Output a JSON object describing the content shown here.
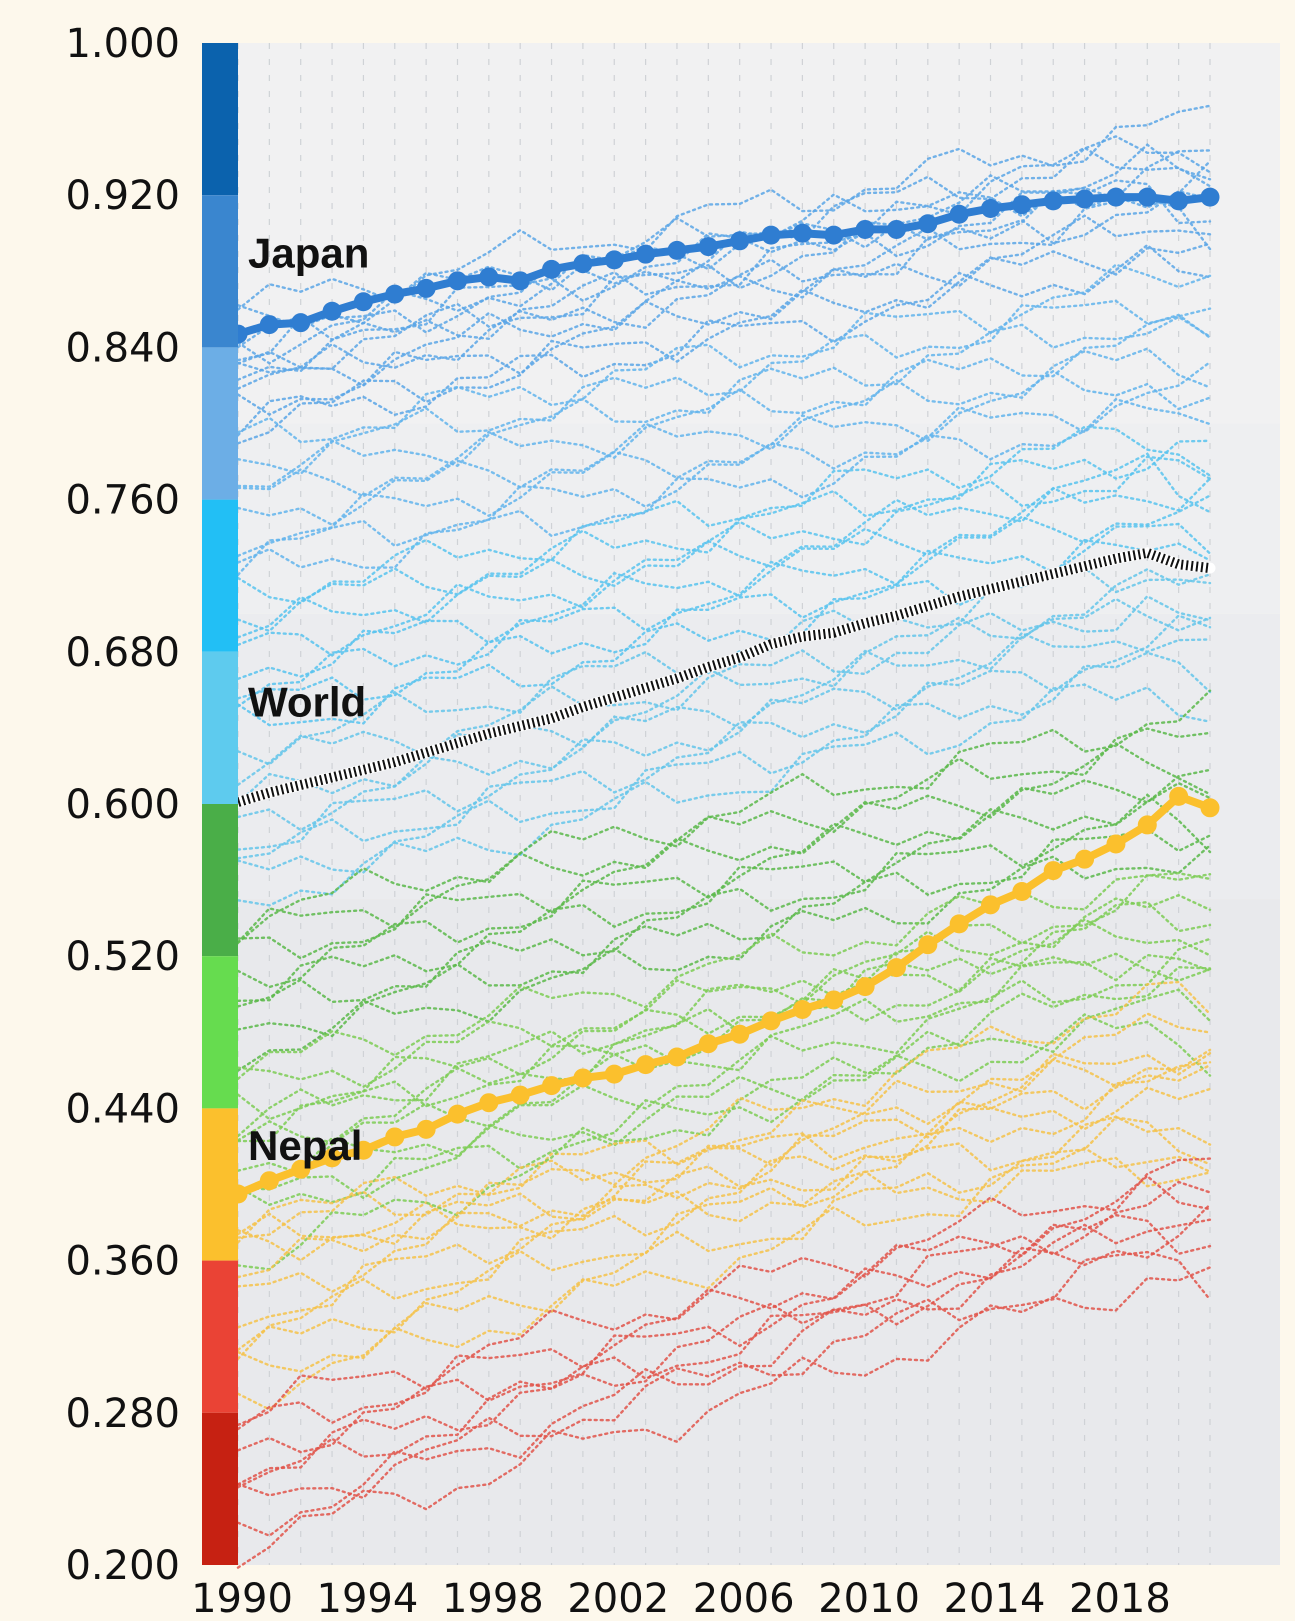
{
  "chart_data": {
    "type": "line",
    "title": "",
    "xlabel": "",
    "ylabel": "",
    "xlim": [
      1990,
      2021
    ],
    "ylim": [
      0.2,
      1.0
    ],
    "x_ticks": [
      "1990",
      "1994",
      "1998",
      "2002",
      "2006",
      "2010",
      "2014",
      "2018"
    ],
    "y_ticks": [
      "1.000",
      "0.920",
      "0.840",
      "0.760",
      "0.680",
      "0.600",
      "0.520",
      "0.440",
      "0.360",
      "0.280",
      "0.200"
    ],
    "grid": "vertical dotted lines each year",
    "legend": "none",
    "color_bands": [
      {
        "from": 0.92,
        "to": 1.0,
        "color": "#0b62ad"
      },
      {
        "from": 0.84,
        "to": 0.92,
        "color": "#3a86cf"
      },
      {
        "from": 0.76,
        "to": 0.84,
        "color": "#6caee6"
      },
      {
        "from": 0.68,
        "to": 0.76,
        "color": "#22bff5"
      },
      {
        "from": 0.6,
        "to": 0.68,
        "color": "#5ecbee"
      },
      {
        "from": 0.52,
        "to": 0.6,
        "color": "#4aae48"
      },
      {
        "from": 0.44,
        "to": 0.52,
        "color": "#66dc4f"
      },
      {
        "from": 0.36,
        "to": 0.44,
        "color": "#fbc02d"
      },
      {
        "from": 0.28,
        "to": 0.36,
        "color": "#ea4335"
      },
      {
        "from": 0.2,
        "to": 0.28,
        "color": "#c62112"
      }
    ],
    "x": [
      1990,
      1991,
      1992,
      1993,
      1994,
      1995,
      1996,
      1997,
      1998,
      1999,
      2000,
      2001,
      2002,
      2003,
      2004,
      2005,
      2006,
      2007,
      2008,
      2009,
      2010,
      2011,
      2012,
      2013,
      2014,
      2015,
      2016,
      2017,
      2018,
      2019,
      2020,
      2021
    ],
    "series": [
      {
        "name": "Japan",
        "color": "#2f7dd1",
        "highlight": "dots",
        "values": [
          0.847,
          0.852,
          0.853,
          0.859,
          0.864,
          0.868,
          0.871,
          0.875,
          0.877,
          0.875,
          0.881,
          0.884,
          0.886,
          0.889,
          0.891,
          0.893,
          0.896,
          0.899,
          0.9,
          0.899,
          0.902,
          0.902,
          0.905,
          0.91,
          0.913,
          0.915,
          0.917,
          0.918,
          0.919,
          0.919,
          0.917,
          0.919
        ]
      },
      {
        "name": "World",
        "color": "#111111",
        "highlight": "dashed",
        "values": [
          0.601,
          0.606,
          0.61,
          0.614,
          0.618,
          0.622,
          0.627,
          0.632,
          0.637,
          0.641,
          0.645,
          0.651,
          0.656,
          0.661,
          0.666,
          0.672,
          0.677,
          0.684,
          0.688,
          0.69,
          0.695,
          0.699,
          0.704,
          0.709,
          0.713,
          0.717,
          0.721,
          0.725,
          0.729,
          0.732,
          0.726,
          0.724
        ]
      },
      {
        "name": "Nepal",
        "color": "#fbc02d",
        "highlight": "dots",
        "values": [
          0.395,
          0.402,
          0.408,
          0.414,
          0.418,
          0.425,
          0.429,
          0.437,
          0.443,
          0.447,
          0.452,
          0.456,
          0.458,
          0.463,
          0.467,
          0.474,
          0.479,
          0.486,
          0.492,
          0.497,
          0.504,
          0.514,
          0.526,
          0.537,
          0.547,
          0.554,
          0.565,
          0.571,
          0.579,
          0.589,
          0.604,
          0.598
        ]
      }
    ],
    "background_series": {
      "description": "many other countries drawn as thin dotted lines colored by HDI band",
      "start_end_pairs": [
        [
          0.86,
          0.96
        ],
        [
          0.85,
          0.95
        ],
        [
          0.84,
          0.95
        ],
        [
          0.84,
          0.94
        ],
        [
          0.84,
          0.94
        ],
        [
          0.83,
          0.93
        ],
        [
          0.83,
          0.93
        ],
        [
          0.82,
          0.92
        ],
        [
          0.82,
          0.92
        ],
        [
          0.81,
          0.91
        ],
        [
          0.8,
          0.9
        ],
        [
          0.8,
          0.89
        ],
        [
          0.79,
          0.88
        ],
        [
          0.78,
          0.87
        ],
        [
          0.77,
          0.86
        ],
        [
          0.76,
          0.85
        ],
        [
          0.75,
          0.84
        ],
        [
          0.74,
          0.83
        ],
        [
          0.73,
          0.82
        ],
        [
          0.72,
          0.81
        ],
        [
          0.71,
          0.8
        ],
        [
          0.7,
          0.79
        ],
        [
          0.69,
          0.78
        ],
        [
          0.68,
          0.78
        ],
        [
          0.67,
          0.77
        ],
        [
          0.66,
          0.76
        ],
        [
          0.65,
          0.75
        ],
        [
          0.64,
          0.74
        ],
        [
          0.63,
          0.73
        ],
        [
          0.62,
          0.71
        ],
        [
          0.6,
          0.72
        ],
        [
          0.59,
          0.71
        ],
        [
          0.58,
          0.7
        ],
        [
          0.57,
          0.69
        ],
        [
          0.56,
          0.68
        ],
        [
          0.55,
          0.67
        ],
        [
          0.54,
          0.65
        ],
        [
          0.53,
          0.64
        ],
        [
          0.52,
          0.63
        ],
        [
          0.51,
          0.62
        ],
        [
          0.5,
          0.61
        ],
        [
          0.49,
          0.6
        ],
        [
          0.48,
          0.59
        ],
        [
          0.47,
          0.58
        ],
        [
          0.46,
          0.57
        ],
        [
          0.45,
          0.55
        ],
        [
          0.44,
          0.54
        ],
        [
          0.43,
          0.53
        ],
        [
          0.43,
          0.56
        ],
        [
          0.42,
          0.55
        ],
        [
          0.41,
          0.53
        ],
        [
          0.4,
          0.52
        ],
        [
          0.39,
          0.5
        ],
        [
          0.39,
          0.49
        ],
        [
          0.38,
          0.47
        ],
        [
          0.38,
          0.45
        ],
        [
          0.37,
          0.43
        ],
        [
          0.37,
          0.41
        ],
        [
          0.36,
          0.52
        ],
        [
          0.35,
          0.51
        ],
        [
          0.34,
          0.49
        ],
        [
          0.33,
          0.48
        ],
        [
          0.32,
          0.47
        ],
        [
          0.31,
          0.46
        ],
        [
          0.3,
          0.44
        ],
        [
          0.29,
          0.43
        ],
        [
          0.28,
          0.41
        ],
        [
          0.27,
          0.4
        ],
        [
          0.26,
          0.39
        ],
        [
          0.25,
          0.38
        ],
        [
          0.24,
          0.4
        ],
        [
          0.23,
          0.37
        ],
        [
          0.22,
          0.39
        ],
        [
          0.21,
          0.36
        ]
      ]
    }
  }
}
